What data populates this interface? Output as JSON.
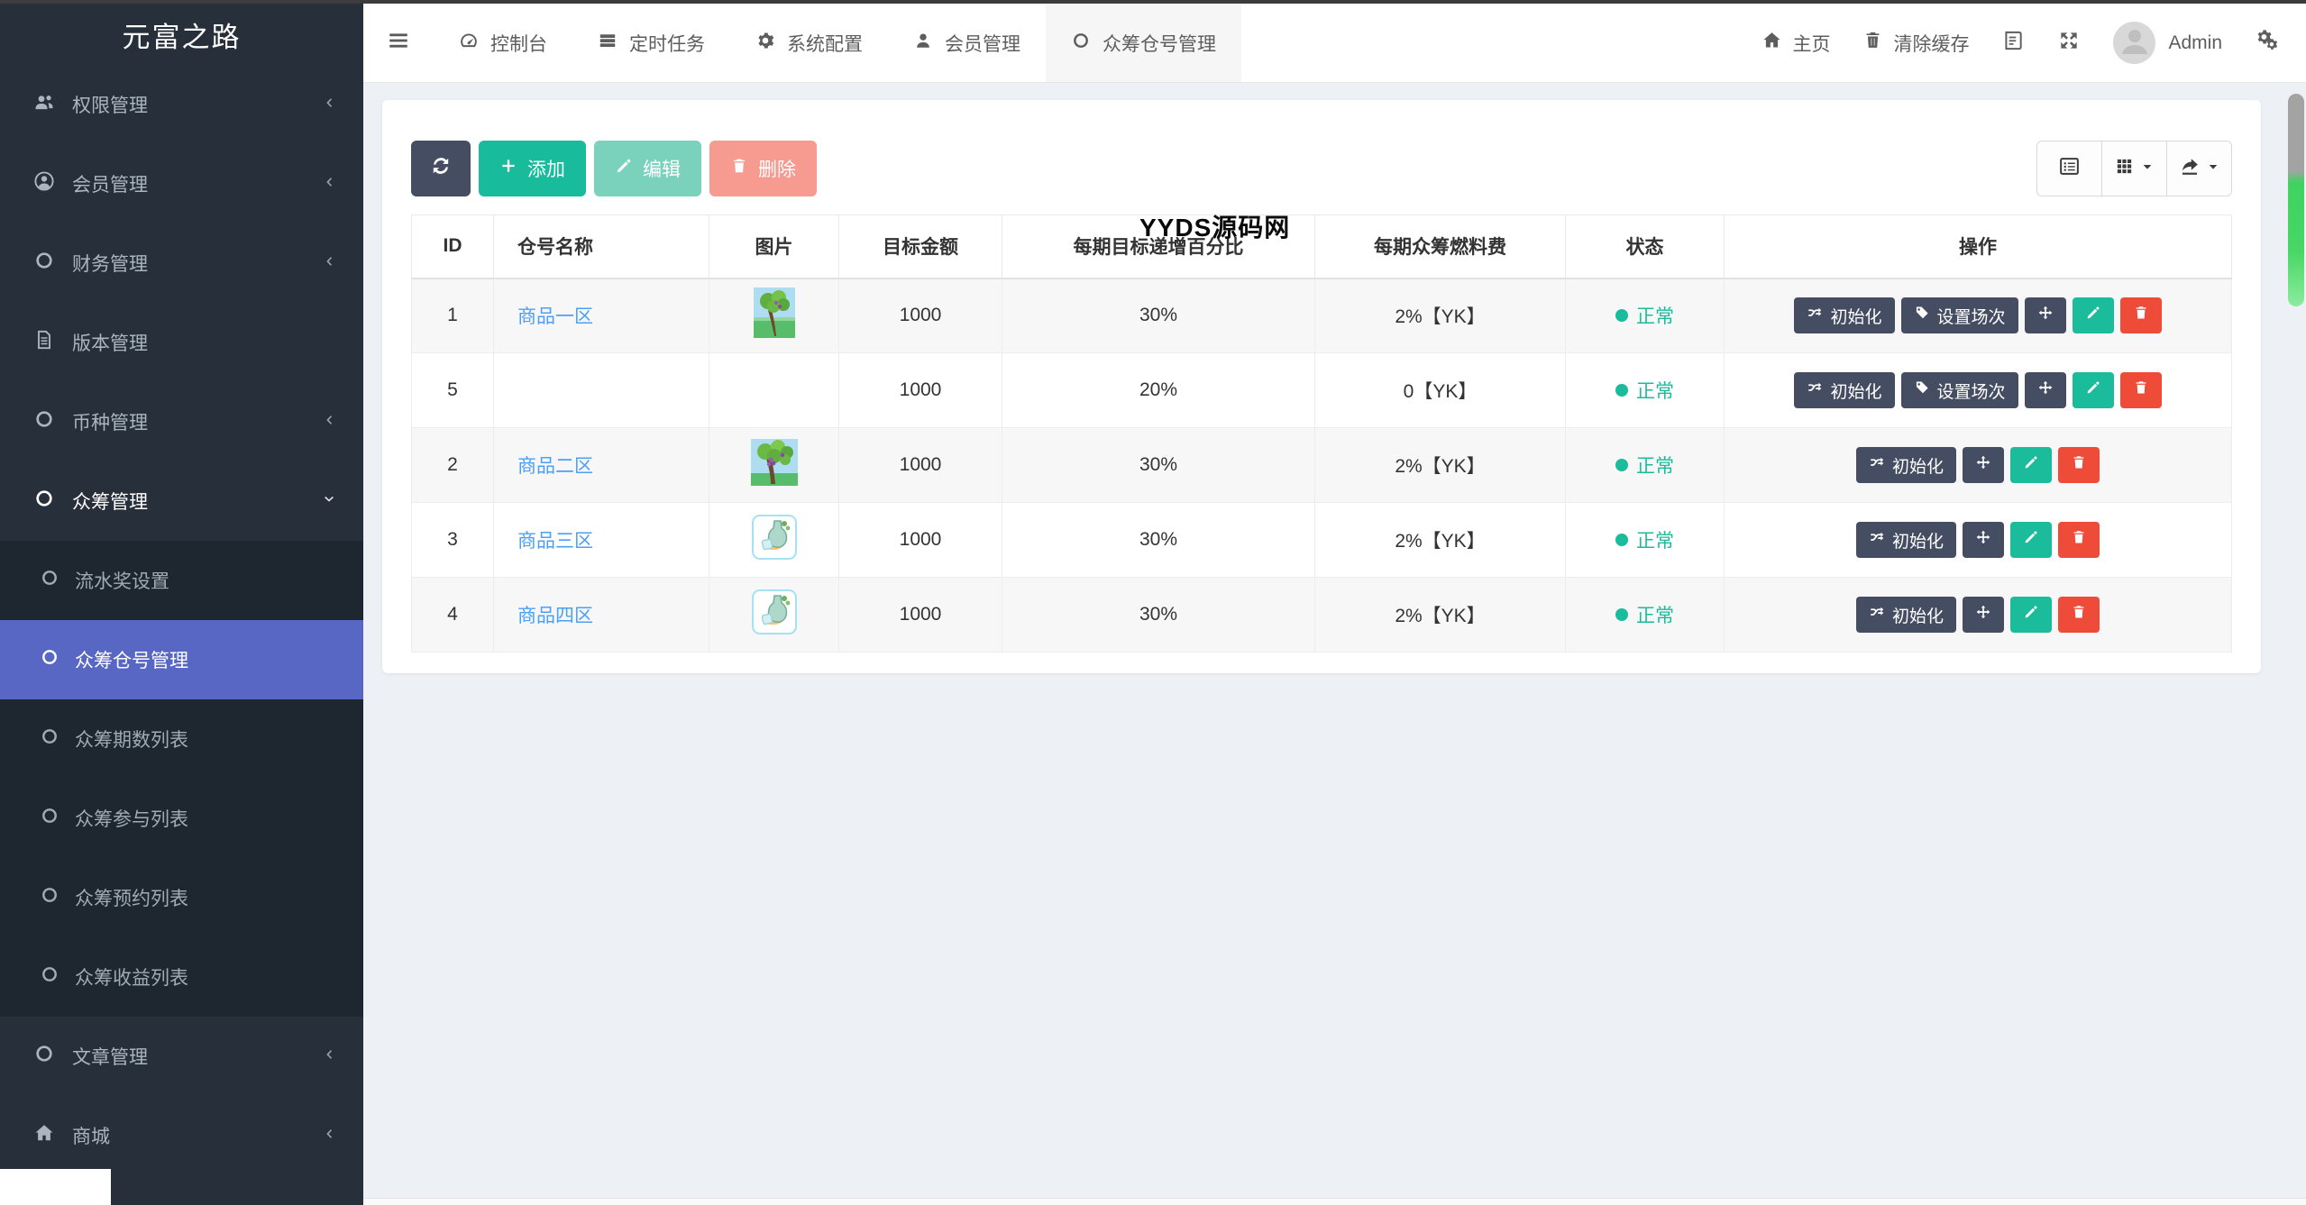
{
  "brand": {
    "logo_text": "元富之路"
  },
  "sidebar": {
    "items": [
      {
        "label": "权限管理",
        "icon": "users-icon",
        "chevron": "left"
      },
      {
        "label": "会员管理",
        "icon": "member-icon",
        "chevron": "left"
      },
      {
        "label": "财务管理",
        "icon": "circle-icon",
        "chevron": "left"
      },
      {
        "label": "版本管理",
        "icon": "file-icon",
        "chevron": ""
      },
      {
        "label": "币种管理",
        "icon": "circle-icon",
        "chevron": "left"
      },
      {
        "label": "众筹管理",
        "icon": "circle-icon",
        "chevron": "down",
        "open": true,
        "children": [
          {
            "label": "流水奖设置",
            "active": false
          },
          {
            "label": "众筹仓号管理",
            "active": true
          },
          {
            "label": "众筹期数列表",
            "active": false
          },
          {
            "label": "众筹参与列表",
            "active": false
          },
          {
            "label": "众筹预约列表",
            "active": false
          },
          {
            "label": "众筹收益列表",
            "active": false
          }
        ]
      },
      {
        "label": "文章管理",
        "icon": "circle-icon",
        "chevron": "left"
      },
      {
        "label": "商城",
        "icon": "home-icon",
        "chevron": "left"
      }
    ]
  },
  "navbar": {
    "tabs": [
      {
        "label": "控制台",
        "icon": "dashboard-icon",
        "active": false
      },
      {
        "label": "定时任务",
        "icon": "tasks-icon",
        "active": false
      },
      {
        "label": "系统配置",
        "icon": "gear-icon",
        "active": false
      },
      {
        "label": "会员管理",
        "icon": "user-icon",
        "active": false
      },
      {
        "label": "众筹仓号管理",
        "icon": "circle-icon",
        "active": true
      }
    ],
    "right": {
      "home_label": "主页",
      "clear_cache_label": "清除缓存",
      "username": "Admin"
    }
  },
  "toolbar": {
    "add_label": "添加",
    "edit_label": "编辑",
    "delete_label": "删除"
  },
  "panel": {
    "watermark": "YYDS源码网"
  },
  "table": {
    "headers": [
      "ID",
      "仓号名称",
      "图片",
      "目标金额",
      "每期目标递增百分比",
      "每期众筹燃料费",
      "状态",
      "操作"
    ],
    "action_labels": {
      "init": "初始化",
      "session": "设置场次"
    },
    "rows": [
      {
        "id": "1",
        "name": "商品一区",
        "image": "tree-portrait",
        "amount": "1000",
        "percent": "30%",
        "fuel": "2%【YK】",
        "status": "正常",
        "actions": [
          "init",
          "session",
          "move",
          "edit",
          "delete"
        ]
      },
      {
        "id": "5",
        "name": "",
        "image": "",
        "amount": "1000",
        "percent": "20%",
        "fuel": "0【YK】",
        "status": "正常",
        "actions": [
          "init",
          "session",
          "move",
          "edit",
          "delete"
        ]
      },
      {
        "id": "2",
        "name": "商品二区",
        "image": "tree-grape",
        "amount": "1000",
        "percent": "30%",
        "fuel": "2%【YK】",
        "status": "正常",
        "actions": [
          "init",
          "move",
          "edit",
          "delete"
        ]
      },
      {
        "id": "3",
        "name": "商品三区",
        "image": "vase",
        "amount": "1000",
        "percent": "30%",
        "fuel": "2%【YK】",
        "status": "正常",
        "actions": [
          "init",
          "move",
          "edit",
          "delete"
        ]
      },
      {
        "id": "4",
        "name": "商品四区",
        "image": "vase",
        "amount": "1000",
        "percent": "30%",
        "fuel": "2%【YK】",
        "status": "正常",
        "actions": [
          "init",
          "move",
          "edit",
          "delete"
        ]
      }
    ]
  },
  "colors": {
    "accent_green": "#18bc9c",
    "accent_red": "#ee4b39",
    "dark_button": "#454d63",
    "active_blue": "#5867c3",
    "link_blue": "#4aa0f6",
    "sidebar_bg": "#272f3a",
    "submenu_bg": "#1e2630",
    "content_bg": "#edf0f5",
    "scrollbar_green": "#47d765"
  }
}
